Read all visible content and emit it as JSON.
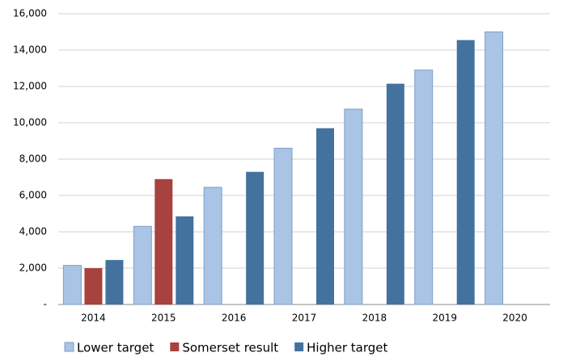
{
  "chart_data": {
    "type": "bar",
    "categories": [
      "2014",
      "2015",
      "2016",
      "2017",
      "2018",
      "2019",
      "2020"
    ],
    "series": [
      {
        "name": "Lower target",
        "color": "#a9c4e4",
        "values": [
          2150,
          4300,
          6450,
          8600,
          10750,
          12900,
          15000
        ]
      },
      {
        "name": "Somerset result",
        "color": "#a8423f",
        "values": [
          2000,
          6900,
          null,
          null,
          null,
          null,
          null
        ]
      },
      {
        "name": "Higher target",
        "color": "#44729f",
        "values": [
          2450,
          4850,
          7300,
          9700,
          12150,
          14550,
          null
        ]
      }
    ],
    "ylim": [
      0,
      16000
    ],
    "yticks": [
      {
        "value": 0,
        "label": "-"
      },
      {
        "value": 2000,
        "label": "2,000"
      },
      {
        "value": 4000,
        "label": "4,000"
      },
      {
        "value": 6000,
        "label": "6,000"
      },
      {
        "value": 8000,
        "label": "8,000"
      },
      {
        "value": 10000,
        "label": "10,000"
      },
      {
        "value": 12000,
        "label": "12,000"
      },
      {
        "value": 14000,
        "label": "14,000"
      },
      {
        "value": 16000,
        "label": "16,000"
      }
    ],
    "grid": true,
    "legend": "bottom"
  }
}
